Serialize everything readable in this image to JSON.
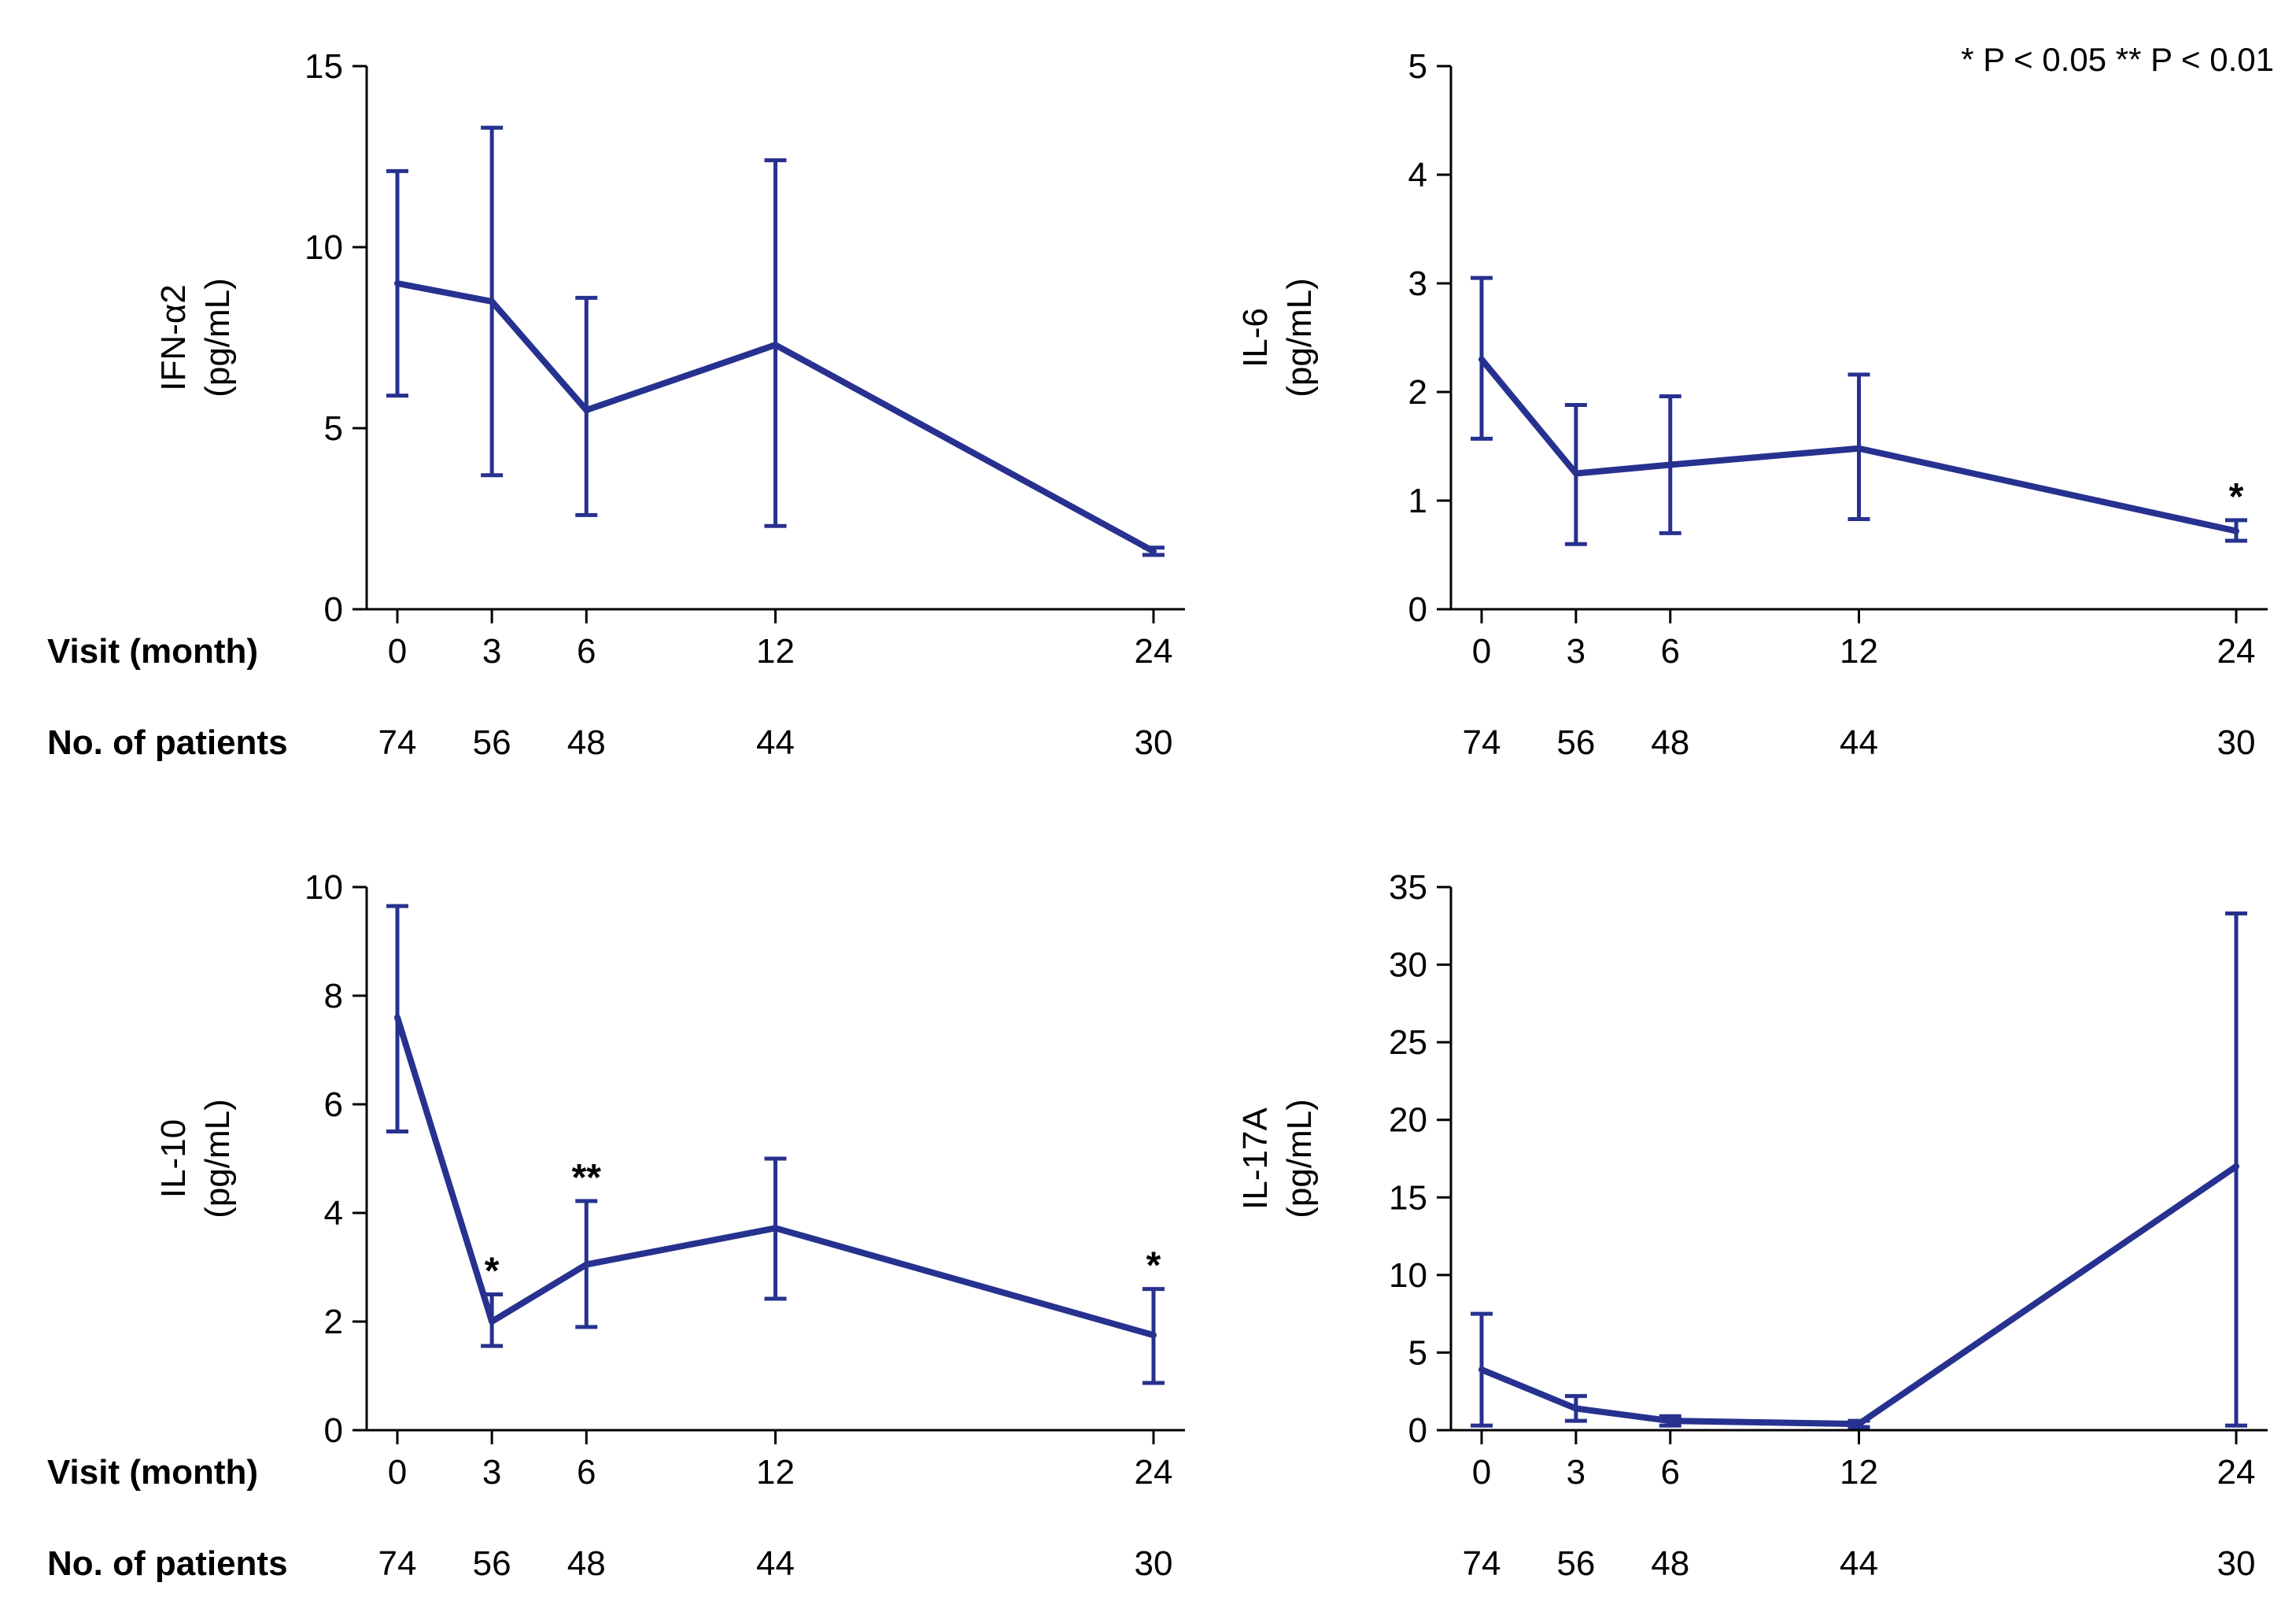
{
  "legend": "* P < 0.05  ** P < 0.01",
  "row_labels": {
    "visit": "Visit (month)",
    "patients": "No. of patients"
  },
  "colors": {
    "series": "#27318f",
    "axis": "#000000"
  },
  "chart_data": [
    {
      "type": "line",
      "ylabel_line1": "IFN-α2",
      "ylabel_line2": "(pg/mL)",
      "x": [
        0,
        3,
        6,
        12,
        24
      ],
      "patients": [
        "74",
        "56",
        "48",
        "44",
        "30"
      ],
      "values": [
        9.0,
        8.5,
        5.5,
        7.3,
        1.6
      ],
      "err_low": [
        5.9,
        3.7,
        2.6,
        2.3,
        1.5
      ],
      "err_high": [
        12.1,
        13.3,
        8.6,
        12.4,
        1.7
      ],
      "stars": [
        "",
        "",
        "",
        "",
        ""
      ],
      "ylim": [
        0,
        15
      ],
      "yticks": [
        0,
        5,
        10,
        15
      ]
    },
    {
      "type": "line",
      "ylabel_line1": "IL-6",
      "ylabel_line2": "(pg/mL)",
      "x": [
        0,
        3,
        6,
        12,
        24
      ],
      "patients": [
        "74",
        "56",
        "48",
        "44",
        "30"
      ],
      "values": [
        2.3,
        1.25,
        1.33,
        1.48,
        0.72
      ],
      "err_low": [
        1.57,
        0.6,
        0.7,
        0.83,
        0.63
      ],
      "err_high": [
        3.05,
        1.88,
        1.96,
        2.16,
        0.82
      ],
      "stars": [
        "",
        "",
        "",
        "",
        "*"
      ],
      "ylim": [
        0,
        5
      ],
      "yticks": [
        0,
        1,
        2,
        3,
        4,
        5
      ]
    },
    {
      "type": "line",
      "ylabel_line1": "IL-10",
      "ylabel_line2": "(pg/mL)",
      "x": [
        0,
        3,
        6,
        12,
        24
      ],
      "patients": [
        "74",
        "56",
        "48",
        "44",
        "30"
      ],
      "values": [
        7.6,
        2.0,
        3.05,
        3.72,
        1.75
      ],
      "err_low": [
        5.5,
        1.55,
        1.9,
        2.42,
        0.87
      ],
      "err_high": [
        9.65,
        2.5,
        4.22,
        5.0,
        2.6
      ],
      "stars": [
        "",
        "*",
        "**",
        "",
        "*"
      ],
      "ylim": [
        0,
        10
      ],
      "yticks": [
        0,
        2,
        4,
        6,
        8,
        10
      ]
    },
    {
      "type": "line",
      "ylabel_line1": "IL-17A",
      "ylabel_line2": "(pg/mL)",
      "x": [
        0,
        3,
        6,
        12,
        24
      ],
      "patients": [
        "74",
        "56",
        "48",
        "44",
        "30"
      ],
      "values": [
        3.9,
        1.4,
        0.6,
        0.4,
        17.0
      ],
      "err_low": [
        0.3,
        0.6,
        0.3,
        0.2,
        0.3
      ],
      "err_high": [
        7.5,
        2.2,
        0.9,
        0.6,
        33.3
      ],
      "stars": [
        "",
        "",
        "",
        "",
        ""
      ],
      "ylim": [
        0,
        35
      ],
      "yticks": [
        0,
        5,
        10,
        15,
        20,
        25,
        30,
        35
      ]
    }
  ]
}
